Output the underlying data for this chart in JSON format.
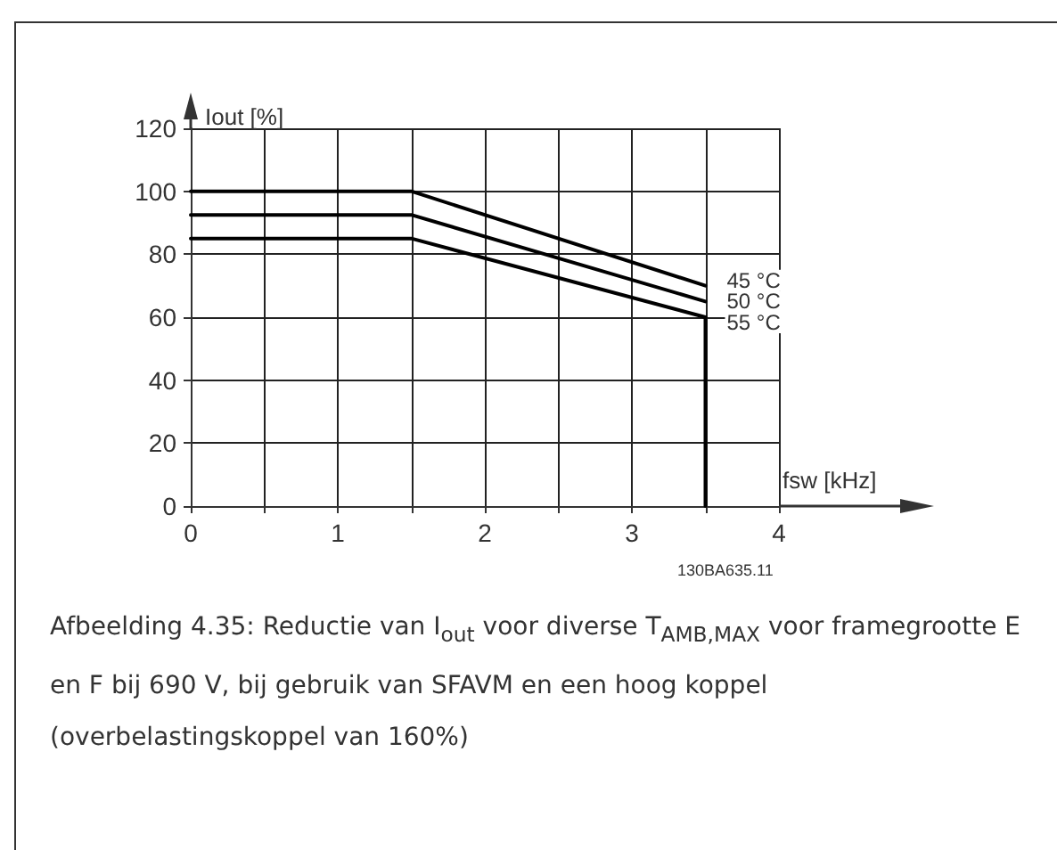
{
  "chart_data": {
    "type": "line",
    "xlabel": "fsw [kHz]",
    "ylabel": "Iout [%]",
    "xlim": [
      0,
      4
    ],
    "xticks": [
      0,
      {
        "value": 0.5,
        "label": null
      },
      1,
      {
        "value": 1.5,
        "label": null
      },
      2,
      {
        "value": 2.5,
        "label": null
      },
      3,
      {
        "value": 3.5,
        "label": null
      },
      4
    ],
    "ylim": [
      0,
      120
    ],
    "yticks": [
      0,
      20,
      40,
      60,
      80,
      100,
      120
    ],
    "grid": true,
    "marker": "none",
    "line_style": "solid",
    "series": [
      {
        "name": "45 °C",
        "color": "#000000",
        "x": [
          0,
          1.5,
          3.5
        ],
        "values": [
          100,
          100,
          70
        ]
      },
      {
        "name": "50 °C",
        "color": "#000000",
        "x": [
          0,
          1.5,
          3.5
        ],
        "values": [
          92.5,
          92.5,
          65
        ]
      },
      {
        "name": "55 °C",
        "color": "#000000",
        "x": [
          0,
          1.5,
          3.5
        ],
        "values": [
          85,
          85,
          60
        ]
      },
      {
        "color": "#000000",
        "x": [
          3.5,
          3.5
        ],
        "values": [
          60,
          0
        ]
      }
    ],
    "annotations": [
      "130BA635.11",
      "Afbeelding 4.35: Reductie van I$_{out}$ voor diverse T$_{AMB,MAX}$ voor framegrootte E en F bij 690 V, bij gebruik van SFAVM en een hoog koppel (overbelastingskoppel van 160%)"
    ]
  }
}
